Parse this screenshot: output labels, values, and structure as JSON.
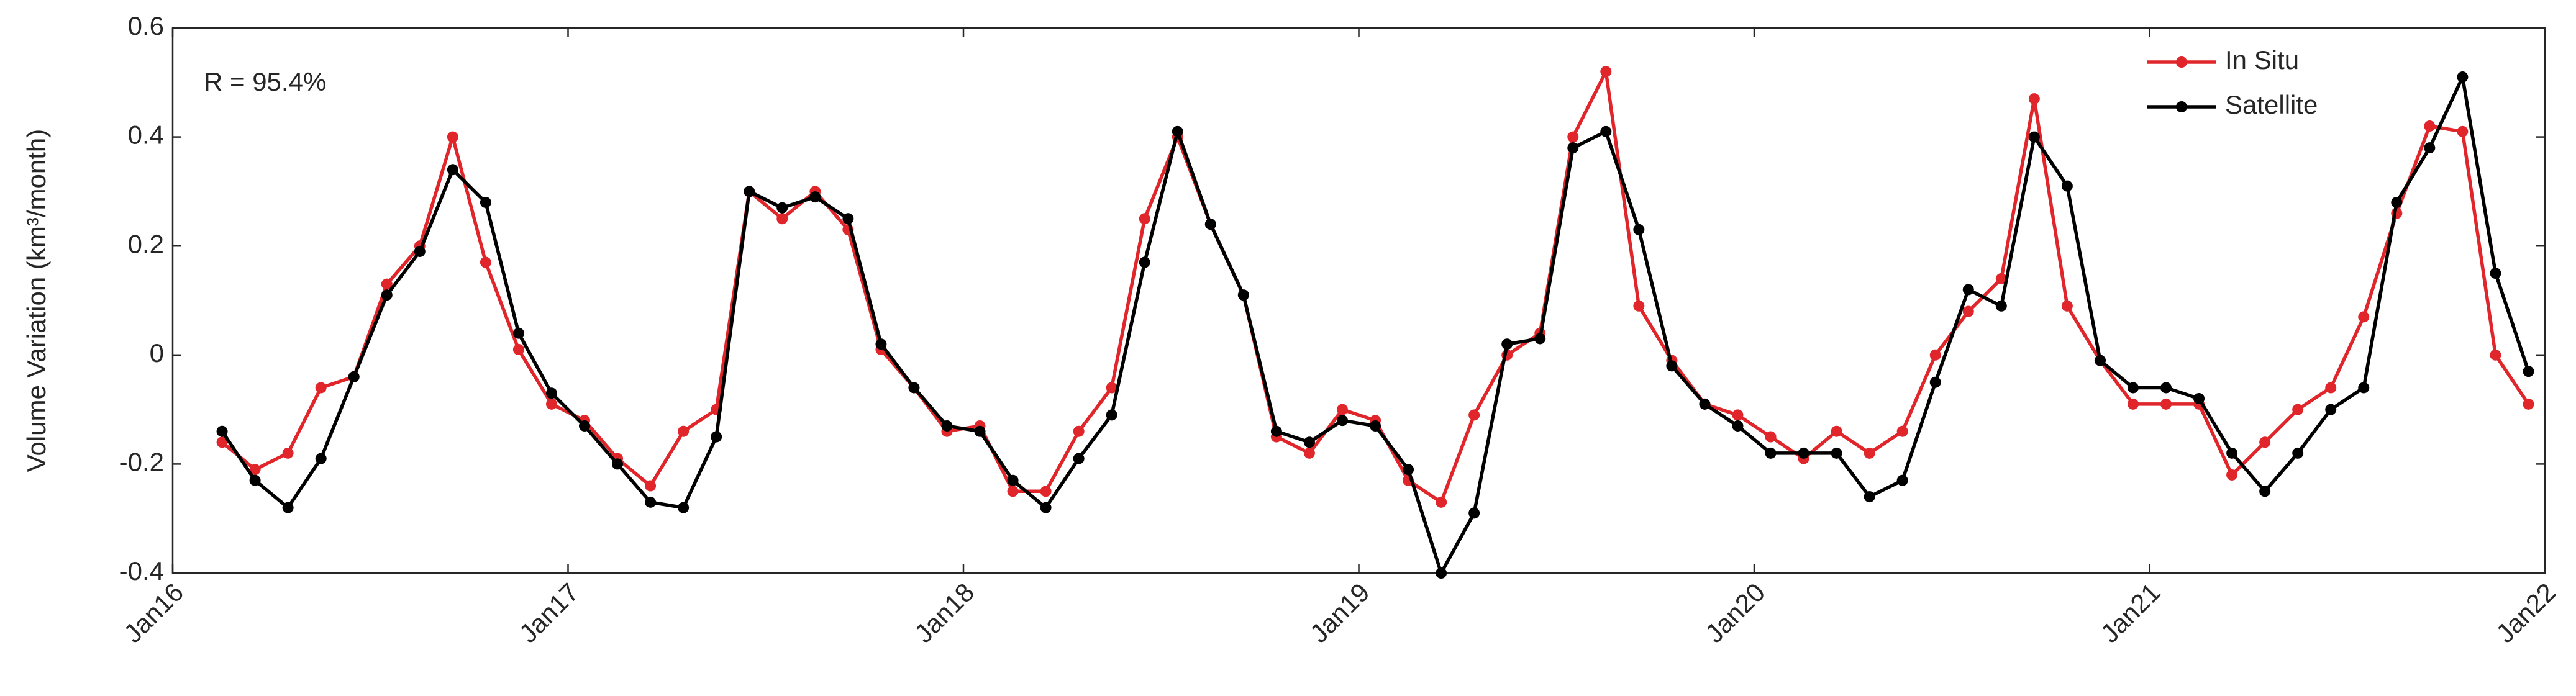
{
  "chart_data": {
    "type": "line",
    "ylabel": "Volume Variation (km³/month)",
    "annotation": "R = 95.4%",
    "x": [
      "2016-02",
      "2016-03",
      "2016-04",
      "2016-05",
      "2016-06",
      "2016-07",
      "2016-08",
      "2016-09",
      "2016-10",
      "2016-11",
      "2016-12",
      "2017-01",
      "2017-02",
      "2017-03",
      "2017-04",
      "2017-05",
      "2017-06",
      "2017-07",
      "2017-08",
      "2017-09",
      "2017-10",
      "2017-11",
      "2017-12",
      "2018-01",
      "2018-02",
      "2018-03",
      "2018-04",
      "2018-05",
      "2018-06",
      "2018-07",
      "2018-08",
      "2018-09",
      "2018-10",
      "2018-11",
      "2018-12",
      "2019-01",
      "2019-02",
      "2019-03",
      "2019-04",
      "2019-05",
      "2019-06",
      "2019-07",
      "2019-08",
      "2019-09",
      "2019-10",
      "2019-11",
      "2019-12",
      "2020-01",
      "2020-02",
      "2020-03",
      "2020-04",
      "2020-05",
      "2020-06",
      "2020-07",
      "2020-08",
      "2020-09",
      "2020-10",
      "2020-11",
      "2020-12",
      "2021-01",
      "2021-02",
      "2021-03",
      "2021-04",
      "2021-05",
      "2021-06",
      "2021-07",
      "2021-08",
      "2021-09",
      "2021-10",
      "2021-11",
      "2021-12"
    ],
    "series": [
      {
        "name": "In Situ",
        "color": "#e0262b",
        "values": [
          -0.16,
          -0.21,
          -0.18,
          -0.06,
          -0.04,
          0.13,
          0.2,
          0.4,
          0.17,
          0.01,
          -0.09,
          -0.12,
          -0.19,
          -0.24,
          -0.14,
          -0.1,
          0.3,
          0.25,
          0.3,
          0.23,
          0.01,
          -0.06,
          -0.14,
          -0.13,
          -0.25,
          -0.25,
          -0.14,
          -0.06,
          0.25,
          0.4,
          0.24,
          0.11,
          -0.15,
          -0.18,
          -0.1,
          -0.12,
          -0.23,
          -0.27,
          -0.11,
          0.0,
          0.04,
          0.4,
          0.52,
          0.09,
          -0.01,
          -0.09,
          -0.11,
          -0.15,
          -0.19,
          -0.14,
          -0.18,
          -0.14,
          0.0,
          0.08,
          0.14,
          0.47,
          0.09,
          -0.01,
          -0.09,
          -0.09,
          -0.09,
          -0.22,
          -0.16,
          -0.1,
          -0.06,
          0.07,
          0.26,
          0.42,
          0.41,
          0.0,
          -0.09
        ]
      },
      {
        "name": "Satellite",
        "color": "#000000",
        "values": [
          -0.14,
          -0.23,
          -0.28,
          -0.19,
          -0.04,
          0.11,
          0.19,
          0.34,
          0.28,
          0.04,
          -0.07,
          -0.13,
          -0.2,
          -0.27,
          -0.28,
          -0.15,
          0.3,
          0.27,
          0.29,
          0.25,
          0.02,
          -0.06,
          -0.13,
          -0.14,
          -0.23,
          -0.28,
          -0.19,
          -0.11,
          0.17,
          0.41,
          0.24,
          0.11,
          -0.14,
          -0.16,
          -0.12,
          -0.13,
          -0.21,
          -0.4,
          -0.29,
          0.02,
          0.03,
          0.38,
          0.41,
          0.23,
          -0.02,
          -0.09,
          -0.13,
          -0.18,
          -0.18,
          -0.18,
          -0.26,
          -0.23,
          -0.05,
          0.12,
          0.09,
          0.4,
          0.31,
          -0.01,
          -0.06,
          -0.06,
          -0.08,
          -0.18,
          -0.25,
          -0.18,
          -0.1,
          -0.06,
          0.28,
          0.38,
          0.51,
          0.15,
          -0.03
        ]
      }
    ],
    "xlim": [
      "2016-01",
      "2022-01"
    ],
    "xticks": [
      {
        "value": "2016-01",
        "label": "Jan16"
      },
      {
        "value": "2017-01",
        "label": "Jan17"
      },
      {
        "value": "2018-01",
        "label": "Jan18"
      },
      {
        "value": "2019-01",
        "label": "Jan19"
      },
      {
        "value": "2020-01",
        "label": "Jan20"
      },
      {
        "value": "2021-01",
        "label": "Jan21"
      },
      {
        "value": "2022-01",
        "label": "Jan22"
      }
    ],
    "ylim": [
      -0.4,
      0.6
    ],
    "yticks": [
      -0.4,
      -0.2,
      0,
      0.2,
      0.4,
      0.6
    ],
    "legend": "upper right",
    "grid": false
  }
}
